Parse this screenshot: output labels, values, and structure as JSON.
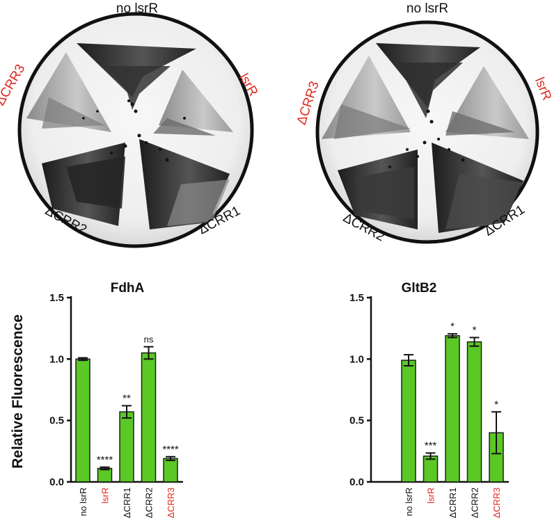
{
  "plates": [
    {
      "labels": {
        "top": "no lsrR",
        "right": "lsrR",
        "left": "ΔCRR3",
        "bottom_left": "ΔCRR2",
        "bottom_right": "ΔCRR1"
      }
    },
    {
      "labels": {
        "top": "no lsrR",
        "right": "lsrR",
        "left": "ΔCRR3",
        "bottom_left": "ΔCRR2",
        "bottom_right": "ΔCRR1"
      }
    }
  ],
  "colors": {
    "bar": "#5ac825",
    "bar_edge": "#1e1e1e",
    "highlight_text": "#e0281e",
    "normal_text": "#111111"
  },
  "chart_data": [
    {
      "type": "bar",
      "title": "FdhA",
      "ylabel": "Relative Fluorescence",
      "ylim": [
        0,
        1.5
      ],
      "yticks": [
        "0.0",
        "0.5",
        "1.0",
        "1.5"
      ],
      "ytick_values": [
        0,
        0.5,
        1.0,
        1.5
      ],
      "categories": [
        "no lsrR",
        "lsrR",
        "ΔCRR1",
        "ΔCRR2",
        "ΔCRR3"
      ],
      "category_colors": [
        "#111111",
        "#e0281e",
        "#111111",
        "#111111",
        "#e0281e"
      ],
      "values": [
        1.0,
        0.11,
        0.57,
        1.05,
        0.19
      ],
      "errors": [
        0.01,
        0.01,
        0.05,
        0.05,
        0.015
      ],
      "significance": [
        "",
        "****",
        "**",
        "ns",
        "****"
      ]
    },
    {
      "type": "bar",
      "title": "GltB2",
      "ylabel": "",
      "ylim": [
        0,
        1.5
      ],
      "yticks": [
        "0.0",
        "0.5",
        "1.0",
        "1.5"
      ],
      "ytick_values": [
        0,
        0.5,
        1.0,
        1.5
      ],
      "categories": [
        "no lsrR",
        "lsrR",
        "ΔCRR1",
        "ΔCRR2",
        "ΔCRR3"
      ],
      "category_colors": [
        "#111111",
        "#e0281e",
        "#111111",
        "#111111",
        "#e0281e"
      ],
      "values": [
        0.99,
        0.21,
        1.19,
        1.14,
        0.4
      ],
      "errors": [
        0.045,
        0.025,
        0.015,
        0.035,
        0.17
      ],
      "significance": [
        "",
        "***",
        "*",
        "*",
        "*"
      ]
    }
  ]
}
